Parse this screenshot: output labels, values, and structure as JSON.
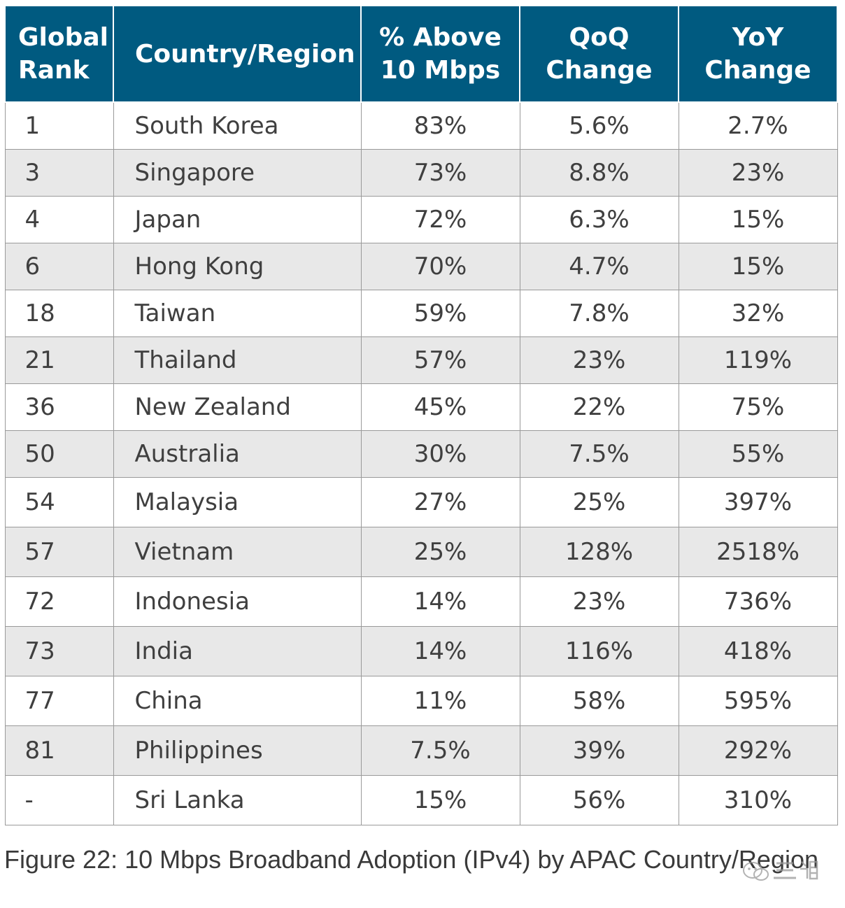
{
  "table": {
    "headers": {
      "rank": [
        "Global",
        "Rank"
      ],
      "country": [
        "Country/Region"
      ],
      "above": [
        "% Above",
        "10 Mbps"
      ],
      "qoq": [
        "QoQ",
        "Change"
      ],
      "yoy": [
        "YoY",
        "Change"
      ]
    },
    "rows": [
      {
        "rank": "1",
        "country": "South Korea",
        "above": "83%",
        "qoq": "5.6%",
        "yoy": "2.7%"
      },
      {
        "rank": "3",
        "country": "Singapore",
        "above": "73%",
        "qoq": "8.8%",
        "yoy": "23%"
      },
      {
        "rank": "4",
        "country": "Japan",
        "above": "72%",
        "qoq": "6.3%",
        "yoy": "15%"
      },
      {
        "rank": "6",
        "country": "Hong Kong",
        "above": "70%",
        "qoq": "4.7%",
        "yoy": "15%"
      },
      {
        "rank": "18",
        "country": "Taiwan",
        "above": "59%",
        "qoq": "7.8%",
        "yoy": "32%"
      },
      {
        "rank": "21",
        "country": "Thailand",
        "above": "57%",
        "qoq": "23%",
        "yoy": "119%"
      },
      {
        "rank": "36",
        "country": "New Zealand",
        "above": "45%",
        "qoq": "22%",
        "yoy": "75%"
      },
      {
        "rank": "50",
        "country": "Australia",
        "above": "30%",
        "qoq": "7.5%",
        "yoy": "55%"
      },
      {
        "rank": "54",
        "country": "Malaysia",
        "above": "27%",
        "qoq": "25%",
        "yoy": "397%"
      },
      {
        "rank": "57",
        "country": "Vietnam",
        "above": "25%",
        "qoq": "128%",
        "yoy": "2518%"
      },
      {
        "rank": "72",
        "country": "Indonesia",
        "above": "14%",
        "qoq": "23%",
        "yoy": "736%"
      },
      {
        "rank": "73",
        "country": "India",
        "above": "14%",
        "qoq": "116%",
        "yoy": "418%"
      },
      {
        "rank": "77",
        "country": "China",
        "above": "11%",
        "qoq": "58%",
        "yoy": "595%"
      },
      {
        "rank": "81",
        "country": "Philippines",
        "above": "7.5%",
        "qoq": "39%",
        "yoy": "292%"
      },
      {
        "rank": "-",
        "country": "Sri Lanka",
        "above": "15%",
        "qoq": "56%",
        "yoy": "310%"
      }
    ]
  },
  "caption": "Figure 22: 10 Mbps Broadband Adoption (IPv4) by APAC Country/Region",
  "colors": {
    "header_bg": "#005a80",
    "header_text": "#ffffff",
    "stripe": "#e8e8e8",
    "border": "#9a9a9a"
  },
  "chart_data": {
    "type": "table",
    "title": "Figure 22: 10 Mbps Broadband Adoption (IPv4) by APAC Country/Region",
    "columns": [
      "Global Rank",
      "Country/Region",
      "% Above 10 Mbps",
      "QoQ Change",
      "YoY Change"
    ],
    "rows": [
      [
        "1",
        "South Korea",
        "83%",
        "5.6%",
        "2.7%"
      ],
      [
        "3",
        "Singapore",
        "73%",
        "8.8%",
        "23%"
      ],
      [
        "4",
        "Japan",
        "72%",
        "6.3%",
        "15%"
      ],
      [
        "6",
        "Hong Kong",
        "70%",
        "4.7%",
        "15%"
      ],
      [
        "18",
        "Taiwan",
        "59%",
        "7.8%",
        "32%"
      ],
      [
        "21",
        "Thailand",
        "57%",
        "23%",
        "119%"
      ],
      [
        "36",
        "New Zealand",
        "45%",
        "22%",
        "75%"
      ],
      [
        "50",
        "Australia",
        "30%",
        "7.5%",
        "55%"
      ],
      [
        "54",
        "Malaysia",
        "27%",
        "25%",
        "397%"
      ],
      [
        "57",
        "Vietnam",
        "25%",
        "128%",
        "2518%"
      ],
      [
        "72",
        "Indonesia",
        "14%",
        "23%",
        "736%"
      ],
      [
        "73",
        "India",
        "14%",
        "116%",
        "418%"
      ],
      [
        "77",
        "China",
        "11%",
        "58%",
        "595%"
      ],
      [
        "81",
        "Philippines",
        "7.5%",
        "39%",
        "292%"
      ],
      [
        "-",
        "Sri Lanka",
        "15%",
        "56%",
        "310%"
      ]
    ]
  }
}
